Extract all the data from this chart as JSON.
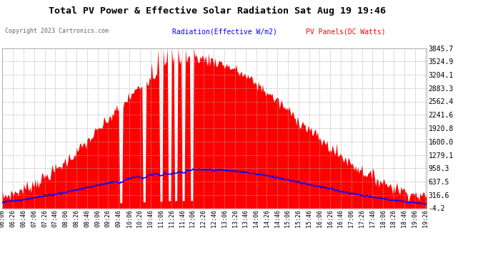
{
  "title": "Total PV Power & Effective Solar Radiation Sat Aug 19 19:46",
  "copyright": "Copyright 2023 Cartronics.com",
  "legend_blue": "Radiation(Effective W/m2)",
  "legend_red": "PV Panels(DC Watts)",
  "yticks": [
    3845.7,
    3524.9,
    3204.1,
    2883.3,
    2562.4,
    2241.6,
    1920.8,
    1600.0,
    1279.1,
    958.3,
    637.5,
    316.6,
    -4.2
  ],
  "ymin": -4.2,
  "ymax": 3845.7,
  "bg_color": "#ffffff",
  "plot_bg_color": "#ffffff",
  "grid_color": "#aaaaaa",
  "title_color": "#000000",
  "red_color": "#ff0000",
  "blue_color": "#0000ff",
  "ytick_color": "#000000",
  "xtick_color": "#000000"
}
